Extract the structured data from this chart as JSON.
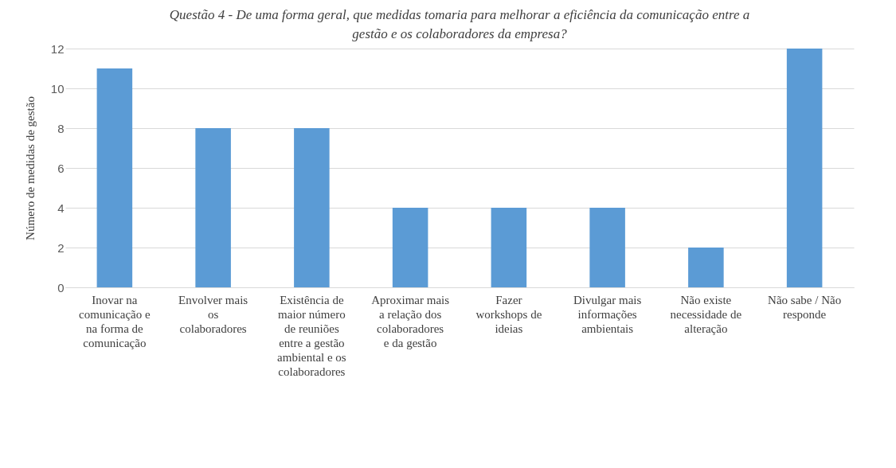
{
  "chart_data": {
    "type": "bar",
    "title": "Questão 4 - De uma forma geral, que medidas tomaria para melhorar a eficiência da comunicação entre a gestão e os colaboradores da empresa?",
    "ylabel": "Número de medidas de gestão",
    "categories": [
      "Inovar na comunicação e na forma de comunicação",
      "Envolver mais os colaboradores",
      "Existência de maior número de reuniões entre a gestão ambiental e os colaboradores",
      "Aproximar mais a relação dos colaboradores e da gestão",
      "Fazer workshops de ideias",
      "Divulgar mais informações ambientais",
      "Não existe necessidade de alteração",
      "Não sabe / Não responde"
    ],
    "values": [
      11,
      8,
      8,
      4,
      4,
      4,
      2,
      12
    ],
    "color": "#5b9bd5",
    "ylim": [
      0,
      12
    ],
    "yticks": [
      0,
      2,
      4,
      6,
      8,
      10,
      12
    ],
    "grid": "y"
  }
}
